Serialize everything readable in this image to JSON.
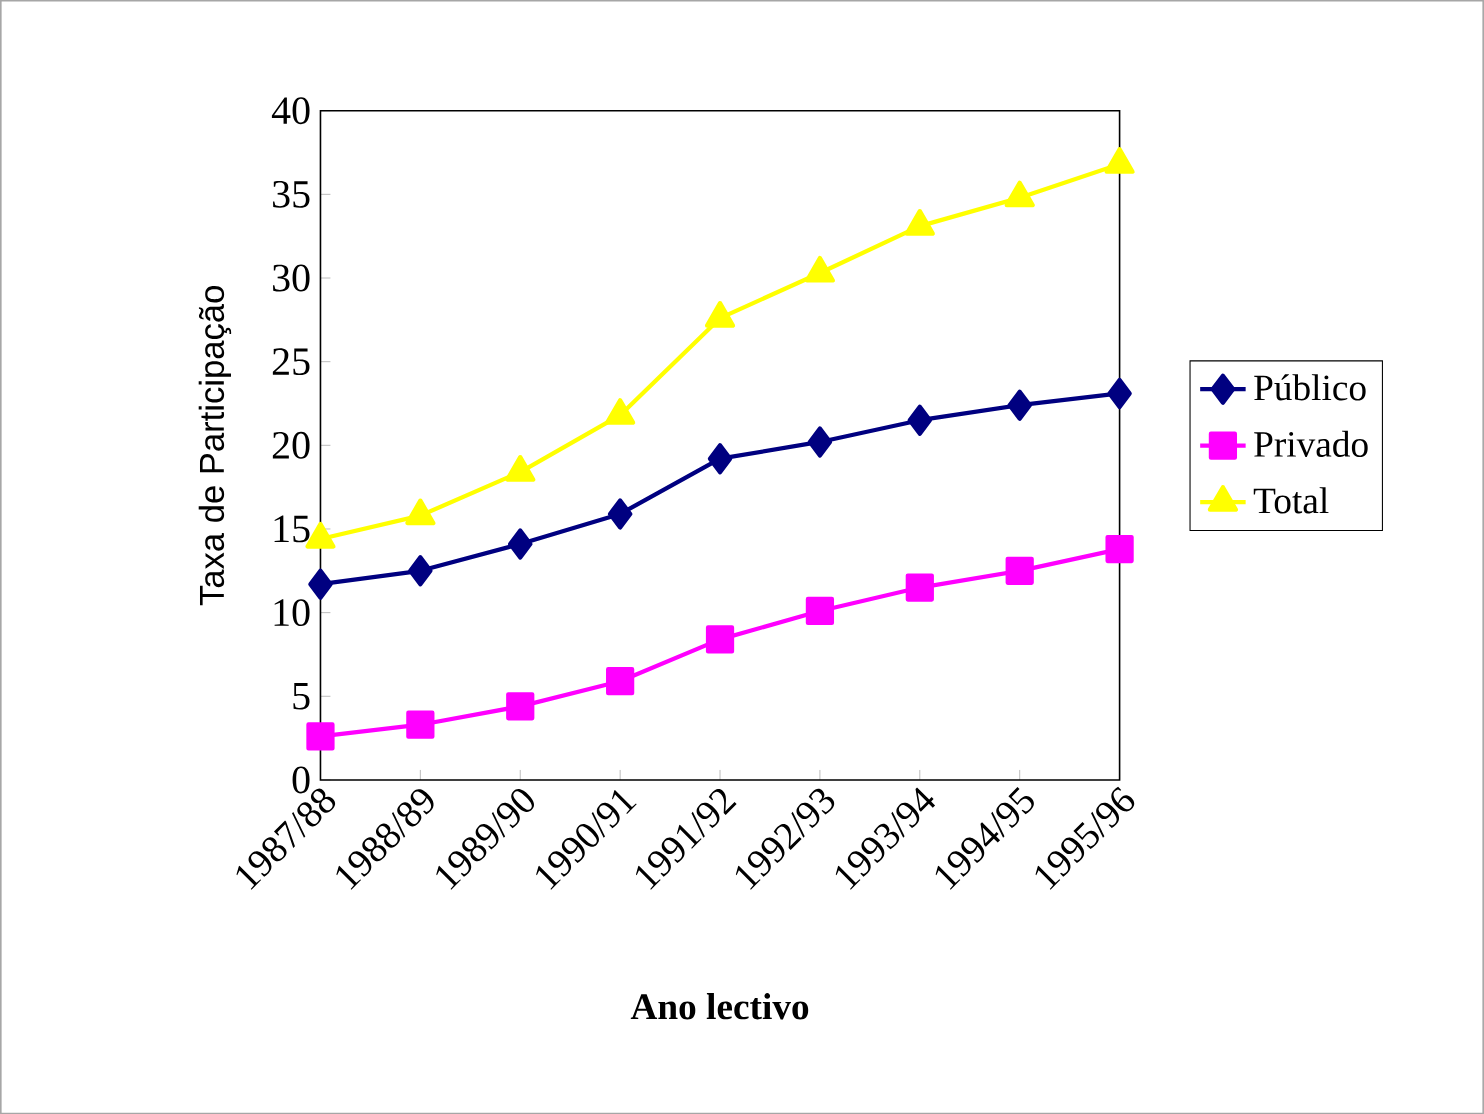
{
  "chart_data": {
    "type": "line",
    "xlabel": "Ano lectivo",
    "ylabel": "Taxa de Participação",
    "categories": [
      "1987/88",
      "1988/89",
      "1989/90",
      "1990/91",
      "1991/92",
      "1992/93",
      "1993/94",
      "1994/95",
      "1995/96"
    ],
    "series": [
      {
        "name": "Público",
        "color": "#000080",
        "marker": "diamond",
        "values": [
          11.7,
          12.5,
          14.1,
          15.9,
          19.2,
          20.2,
          21.5,
          22.4,
          23.1
        ]
      },
      {
        "name": "Privado",
        "color": "#ff00ff",
        "marker": "square",
        "values": [
          2.6,
          3.3,
          4.4,
          5.9,
          8.4,
          10.1,
          11.5,
          12.5,
          13.8
        ]
      },
      {
        "name": "Total",
        "color": "#ffff00",
        "marker": "triangle",
        "values": [
          14.4,
          15.8,
          18.4,
          21.8,
          27.6,
          30.3,
          33.1,
          34.8,
          36.8
        ]
      }
    ],
    "ylim": [
      0,
      40
    ],
    "yticks": [
      0,
      5,
      10,
      15,
      20,
      25,
      30,
      35,
      40
    ],
    "grid": false,
    "legend": "right",
    "line_style": "solid"
  }
}
